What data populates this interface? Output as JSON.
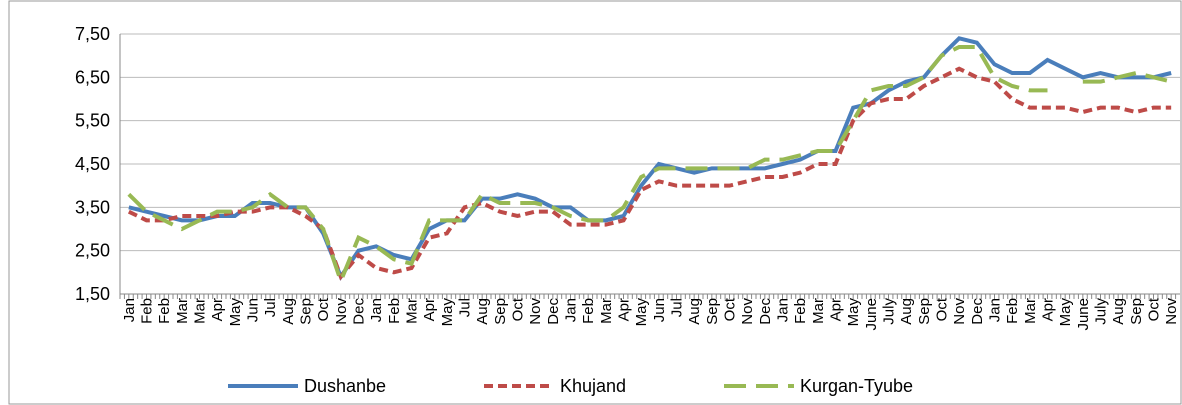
{
  "chart_data": {
    "type": "line",
    "categories": [
      "Jan",
      "Feb",
      "Feb",
      "Mar",
      "Mar",
      "Apr",
      "May",
      "Jun",
      "Jul",
      "Aug",
      "Sep",
      "Oct",
      "Nov",
      "Dec",
      "Jan",
      "Feb",
      "Mar",
      "Apr",
      "May",
      "Jul",
      "Aug",
      "Sep",
      "Oct",
      "Nov",
      "Dec",
      "Jan",
      "Feb",
      "Mar",
      "Apr",
      "May",
      "Jun",
      "Jul",
      "Aug",
      "Sep",
      "Oct",
      "Nov",
      "Dec",
      "Jan",
      "Feb",
      "Mar",
      "Apr",
      "May",
      "June",
      "July",
      "Aug",
      "Sep",
      "Oct",
      "Nov",
      "Dec",
      "Jan",
      "Feb",
      "Mar",
      "Apr",
      "May",
      "June",
      "July",
      "Aug",
      "Sep",
      "Oct",
      "Nov"
    ],
    "series": [
      {
        "name": "Dushanbe",
        "color": "#4a7ebb",
        "dash": "solid",
        "values": [
          3.5,
          3.4,
          3.3,
          3.2,
          3.2,
          3.3,
          3.3,
          3.6,
          3.6,
          3.5,
          3.5,
          2.9,
          1.9,
          2.5,
          2.6,
          2.4,
          2.3,
          3.0,
          3.2,
          3.2,
          3.7,
          3.7,
          3.8,
          3.7,
          3.5,
          3.5,
          3.2,
          3.2,
          3.3,
          4.0,
          4.5,
          4.4,
          4.3,
          4.4,
          4.4,
          4.4,
          4.4,
          4.5,
          4.6,
          4.8,
          4.8,
          5.8,
          5.9,
          6.2,
          6.4,
          6.5,
          7.0,
          7.4,
          7.3,
          6.8,
          6.6,
          6.6,
          6.9,
          6.7,
          6.5,
          6.6,
          6.5,
          6.5,
          6.5,
          6.6
        ]
      },
      {
        "name": "Khujand",
        "color": "#be4b48",
        "dash": "dashed",
        "values": [
          3.4,
          3.2,
          3.2,
          3.3,
          3.3,
          3.3,
          3.4,
          3.4,
          3.5,
          3.5,
          3.3,
          3.0,
          1.9,
          2.4,
          2.1,
          2.0,
          2.1,
          2.8,
          2.9,
          3.5,
          3.6,
          3.4,
          3.3,
          3.4,
          3.4,
          3.1,
          3.1,
          3.1,
          3.2,
          3.9,
          4.1,
          4.0,
          4.0,
          4.0,
          4.0,
          4.1,
          4.2,
          4.2,
          4.3,
          4.5,
          4.5,
          5.5,
          5.9,
          6.0,
          6.0,
          6.3,
          6.5,
          6.7,
          6.5,
          6.4,
          6.0,
          5.8,
          5.8,
          5.8,
          5.7,
          5.8,
          5.8,
          5.7,
          5.8,
          5.8
        ]
      },
      {
        "name": "Kurgan-Tyube",
        "color": "#98b954",
        "dash": "longdash",
        "values": [
          3.8,
          3.4,
          3.2,
          3.0,
          3.2,
          3.4,
          3.4,
          3.5,
          3.8,
          3.5,
          3.5,
          3.0,
          1.8,
          2.8,
          2.6,
          2.3,
          2.2,
          3.2,
          3.2,
          3.2,
          3.8,
          3.6,
          3.6,
          3.6,
          3.5,
          3.3,
          3.2,
          3.2,
          3.5,
          4.2,
          4.4,
          4.4,
          4.4,
          4.4,
          4.4,
          4.4,
          4.6,
          4.6,
          4.7,
          4.8,
          4.8,
          5.5,
          6.2,
          6.3,
          6.3,
          6.5,
          7.0,
          7.2,
          7.2,
          6.5,
          6.3,
          6.2,
          6.2,
          null,
          6.4,
          6.4,
          6.5,
          6.6,
          6.5,
          6.4
        ]
      }
    ],
    "ylim": [
      1.5,
      7.5
    ],
    "yticks": [
      {
        "value": 1.5,
        "label": "1,50"
      },
      {
        "value": 2.5,
        "label": "2,50"
      },
      {
        "value": 3.5,
        "label": "3,50"
      },
      {
        "value": 4.5,
        "label": "4,50"
      },
      {
        "value": 5.5,
        "label": "5,50"
      },
      {
        "value": 6.5,
        "label": "6,50"
      },
      {
        "value": 7.5,
        "label": "7,50"
      }
    ],
    "grid": true,
    "legend": "bottom"
  }
}
